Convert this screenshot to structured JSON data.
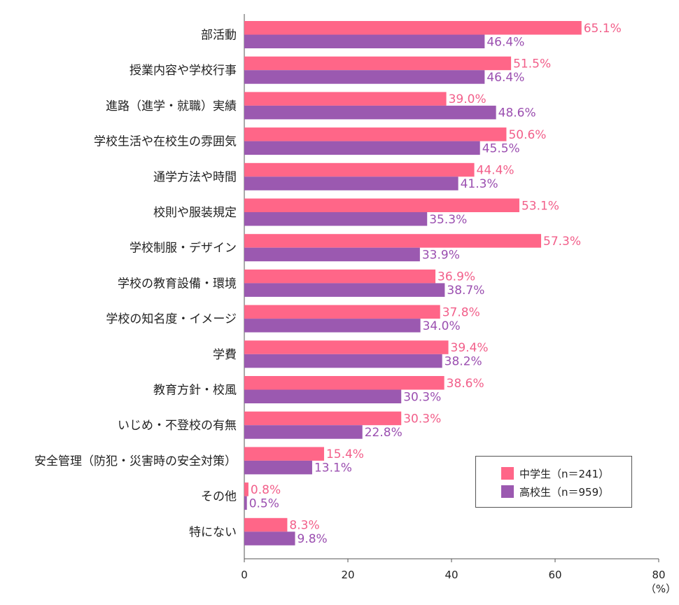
{
  "chart_data": {
    "type": "bar",
    "orientation": "horizontal",
    "categories": [
      "部活動",
      "授業内容や学校行事",
      "進路（進学・就職）実績",
      "学校生活や在校生の雰囲気",
      "通学方法や時間",
      "校則や服装規定",
      "学校制服・デザイン",
      "学校の教育設備・環境",
      "学校の知名度・イメージ",
      "学費",
      "教育方針・校風",
      "いじめ・不登校の有無",
      "安全管理（防犯・災害時の安全対策）",
      "その他",
      "特にない"
    ],
    "series": [
      {
        "name": "中学生（n＝241）",
        "color": "#ff6688",
        "label_color": "#f25f8a",
        "values": [
          65.1,
          51.5,
          39.0,
          50.6,
          44.4,
          53.1,
          57.3,
          36.9,
          37.8,
          39.4,
          38.6,
          30.3,
          15.4,
          0.8,
          8.3
        ],
        "labels": [
          "65.1%",
          "51.5%",
          "39.0%",
          "50.6%",
          "44.4%",
          "53.1%",
          "57.3%",
          "36.9%",
          "37.8%",
          "39.4%",
          "38.6%",
          "30.3%",
          "15.4%",
          "0.8%",
          "8.3%"
        ]
      },
      {
        "name": "高校生（n＝959）",
        "color": "#9b59b0",
        "label_color": "#9b4fb0",
        "values": [
          46.4,
          46.4,
          48.6,
          45.5,
          41.3,
          35.3,
          33.9,
          38.7,
          34.0,
          38.2,
          30.3,
          22.8,
          13.1,
          0.5,
          9.8
        ],
        "labels": [
          "46.4%",
          "46.4%",
          "48.6%",
          "45.5%",
          "41.3%",
          "35.3%",
          "33.9%",
          "38.7%",
          "34.0%",
          "38.2%",
          "30.3%",
          "22.8%",
          "13.1%",
          "0.5%",
          "9.8%"
        ]
      }
    ],
    "xlim": [
      0,
      80
    ],
    "xticks": [
      "0",
      "20",
      "40",
      "60",
      "80"
    ],
    "xunit": "（%）",
    "grid": false,
    "legend_position": "bottom-right"
  }
}
